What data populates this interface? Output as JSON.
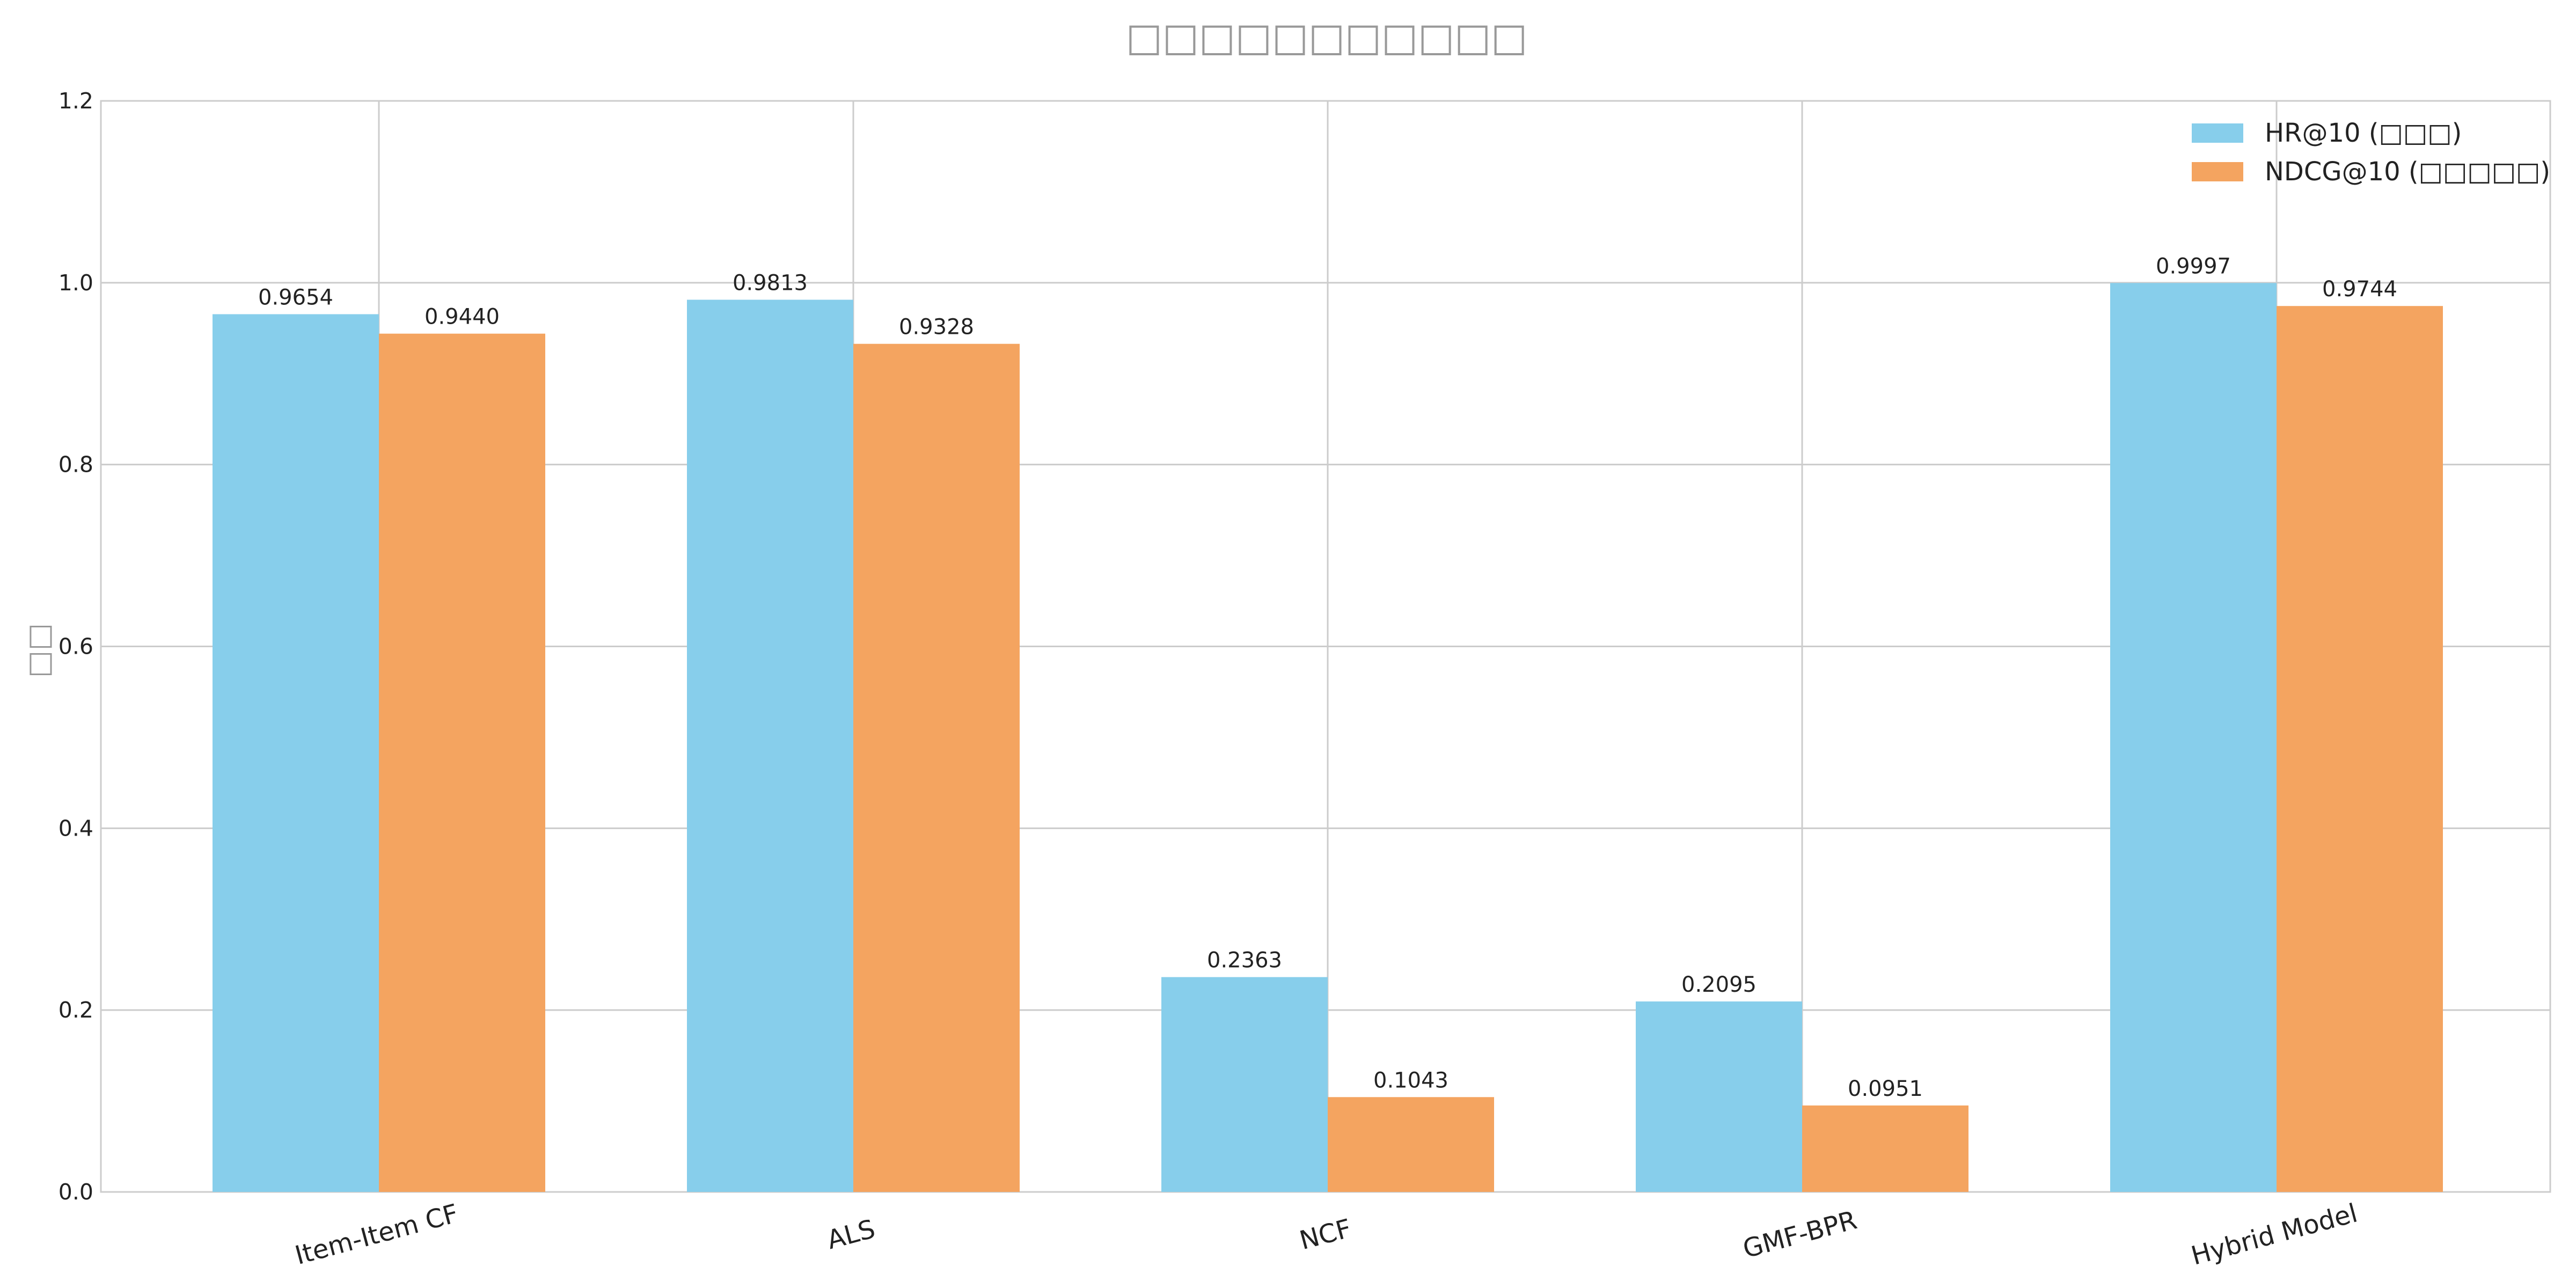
{
  "chart_data": {
    "type": "bar",
    "title": "□□□□□□□□□□□",
    "xlabel": "",
    "ylabel": "□□",
    "categories": [
      "Item-Item CF",
      "ALS",
      "NCF",
      "GMF-BPR",
      "Hybrid Model"
    ],
    "series": [
      {
        "name": "HR@10 (□□□)",
        "color": "#87CEEB",
        "values": [
          0.9654,
          0.9813,
          0.2363,
          0.2095,
          0.9997
        ],
        "labels": [
          "0.9654",
          "0.9813",
          "0.2363",
          "0.2095",
          "0.9997"
        ]
      },
      {
        "name": "NDCG@10 (□□□□□)",
        "color": "#F4A460",
        "values": [
          0.944,
          0.9328,
          0.1043,
          0.0951,
          0.9744
        ],
        "labels": [
          "0.9440",
          "0.9328",
          "0.1043",
          "0.0951",
          "0.9744"
        ]
      }
    ],
    "ylim": [
      0,
      1.2
    ],
    "yticks": [
      "0.0",
      "0.2",
      "0.4",
      "0.6",
      "0.8",
      "1.0",
      "1.2"
    ],
    "grid": true,
    "legend_position": "top-right"
  }
}
